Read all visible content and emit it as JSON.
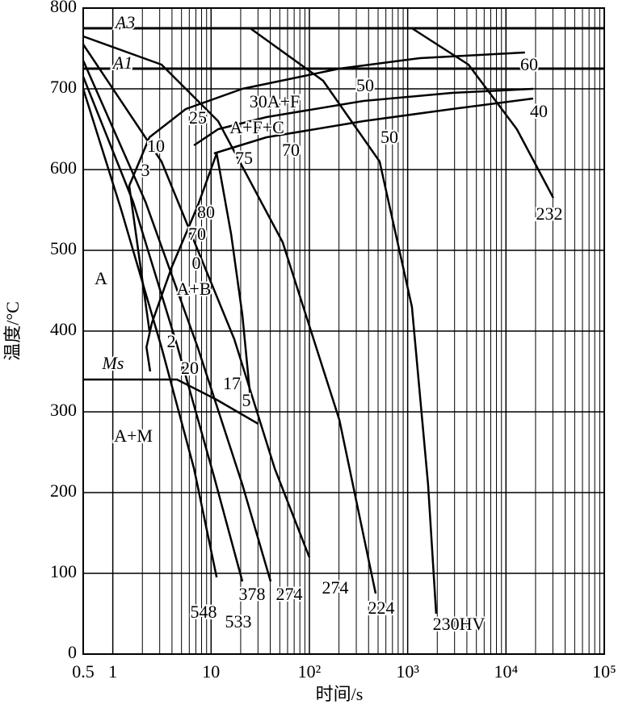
{
  "chart_data": {
    "type": "line",
    "x_label": "时间/s",
    "y_label": "温度/°C",
    "xscale": "log",
    "grid": true,
    "color": "#000000",
    "xlim": [
      0.5,
      100000
    ],
    "ylim": [
      0,
      800
    ],
    "xticks": [
      {
        "value": 0.5,
        "label": "0.5"
      },
      1,
      10,
      {
        "value": 100,
        "label": "10²"
      },
      {
        "value": 1000,
        "label": "10³"
      },
      {
        "value": 10000,
        "label": "10⁴"
      },
      {
        "value": 100000,
        "label": "10⁵"
      }
    ],
    "yticks": [
      0,
      100,
      200,
      300,
      400,
      500,
      600,
      700,
      800
    ],
    "x_minor_grid": [
      2,
      3,
      4,
      5,
      6,
      7,
      8,
      9,
      20,
      30,
      40,
      50,
      60,
      70,
      80,
      90,
      200,
      300,
      400,
      500,
      600,
      700,
      800,
      900,
      2000,
      3000,
      4000,
      5000,
      6000,
      7000,
      8000,
      9000,
      20000,
      30000,
      40000,
      50000,
      60000,
      70000,
      80000,
      90000
    ],
    "hlines": [
      {
        "label": "A3",
        "value": 775
      },
      {
        "label": "A1",
        "value": 725
      }
    ],
    "curves": [
      {
        "x": [
          0.5,
          1.22,
          3.13,
          6.7,
          11.4
        ],
        "y": [
          700,
          550,
          380,
          230,
          95
        ]
      },
      {
        "x": [
          0.5,
          1.61,
          4.57,
          10.7,
          20.8
        ],
        "y": [
          715,
          560,
          380,
          220,
          90
        ]
      },
      {
        "x": [
          0.5,
          2.15,
          7.3,
          20.8,
          40.3
        ],
        "y": [
          735,
          560,
          380,
          210,
          90
        ]
      },
      {
        "x": [
          0.5,
          3.13,
          17.2,
          44.3,
          99.8
        ],
        "y": [
          755,
          610,
          390,
          230,
          120
        ]
      },
      {
        "x": [
          0.5,
          3.13,
          11.8,
          53.5,
          202,
          472
        ],
        "y": [
          765,
          730,
          660,
          510,
          290,
          75
        ]
      },
      {
        "x": [
          25,
          138,
          518,
          1104,
          1613,
          1950
        ],
        "y": [
          775,
          710,
          610,
          430,
          210,
          50
        ]
      },
      {
        "x": [
          1104,
          4150,
          12900,
          30300
        ],
        "y": [
          775,
          730,
          650,
          565
        ]
      },
      {
        "x": [
          2.36,
          1.47,
          2.36,
          5.53,
          20.8,
          202,
          1334,
          15600
        ],
        "y": [
          400,
          580,
          640,
          675,
          700,
          725,
          738,
          745
        ]
      },
      {
        "x": [
          6.7,
          11.8,
          36.6,
          355,
          2840,
          18900
        ],
        "y": [
          630,
          650,
          665,
          685,
          695,
          700
        ]
      },
      {
        "x": [
          10.7,
          36.6,
          355,
          2840,
          18900
        ],
        "y": [
          620,
          640,
          660,
          675,
          688
        ]
      },
      {
        "x": [
          11.4,
          7.3,
          4.0,
          2.5,
          2.2,
          2.4
        ],
        "y": [
          620,
          555,
          480,
          410,
          380,
          350
        ]
      },
      {
        "x": [
          0.5,
          4.5,
          11.4,
          30.3
        ],
        "y": [
          340,
          340,
          315,
          285
        ]
      },
      {
        "x": [
          11.4,
          16.0,
          20.8,
          25.0
        ],
        "y": [
          620,
          520,
          420,
          320
        ]
      }
    ],
    "annotations": [
      "A3",
      "A1",
      "Ms",
      "A",
      "A+B",
      "A+M",
      "30A+F",
      "A+F+C",
      "25",
      "10",
      "3",
      "50",
      "60",
      "40",
      "50",
      "75",
      "70",
      "80",
      "70",
      "0",
      "2",
      "20",
      "17",
      "5",
      "232",
      "548",
      "533",
      "378",
      "274",
      "274",
      "224",
      "230HV"
    ]
  }
}
